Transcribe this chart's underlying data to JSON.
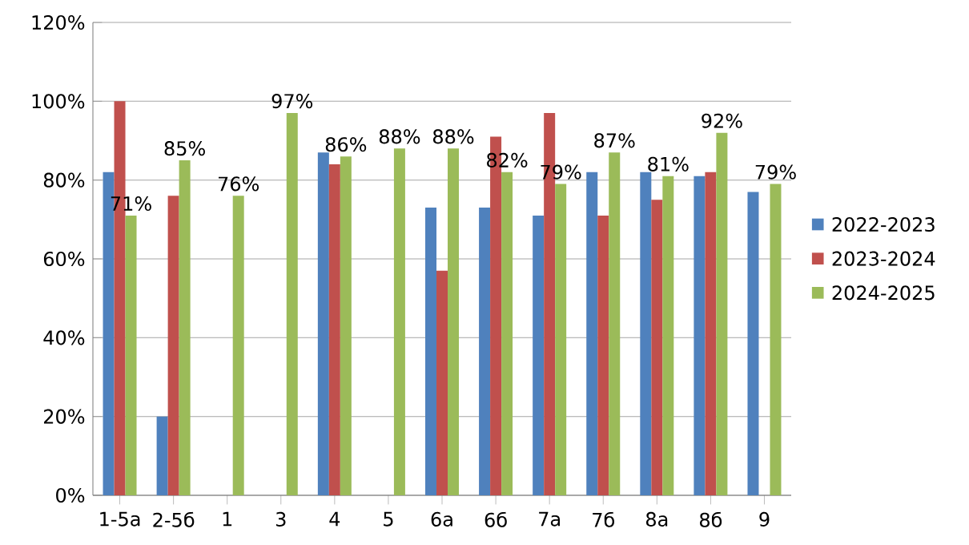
{
  "chart_data": {
    "type": "bar",
    "categories": [
      "1-5а",
      "2-5б",
      "1",
      "3",
      "4",
      "5",
      "6а",
      "6б",
      "7а",
      "7б",
      "8а",
      "8б",
      "9"
    ],
    "series": [
      {
        "name": "2022-2023",
        "color": "#4f81bd",
        "values": [
          82,
          20,
          null,
          null,
          87,
          null,
          73,
          73,
          71,
          82,
          82,
          81,
          77
        ]
      },
      {
        "name": "2023-2024",
        "color": "#c0504d",
        "values": [
          100,
          76,
          null,
          null,
          84,
          null,
          57,
          91,
          97,
          71,
          75,
          82,
          null
        ]
      },
      {
        "name": "2024-2025",
        "color": "#9bbb59",
        "values": [
          71,
          85,
          76,
          97,
          86,
          88,
          88,
          82,
          79,
          87,
          81,
          92,
          79
        ],
        "value_labels": [
          "71%",
          "85%",
          "76%",
          "97%",
          "86%",
          "88%",
          "88%",
          "82%",
          "79%",
          "87%",
          "81%",
          "92%",
          "79%"
        ]
      }
    ],
    "ylim": [
      0,
      120
    ],
    "yticks": [
      {
        "value": 0,
        "label": "0%"
      },
      {
        "value": 20,
        "label": "20%"
      },
      {
        "value": 40,
        "label": "40%"
      },
      {
        "value": 60,
        "label": "60%"
      },
      {
        "value": 80,
        "label": "80%"
      },
      {
        "value": 100,
        "label": "100%"
      },
      {
        "value": 120,
        "label": "120%"
      }
    ],
    "grid": "y",
    "legend": "right"
  }
}
